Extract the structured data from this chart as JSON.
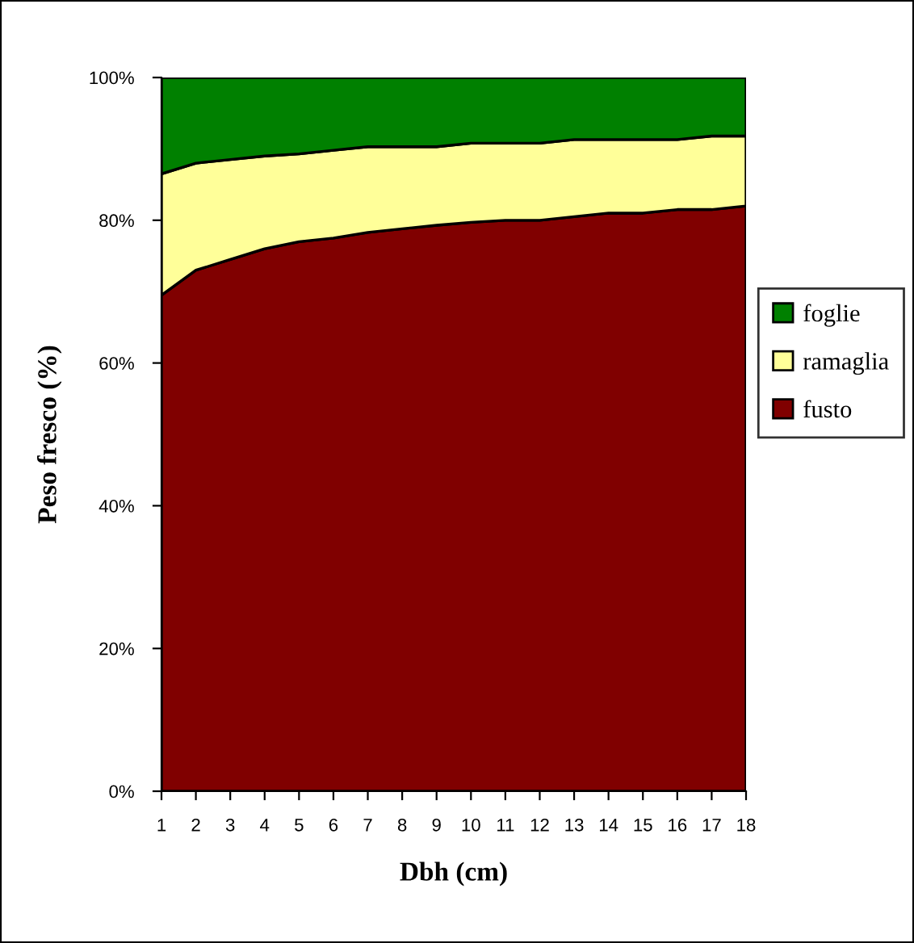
{
  "chart_data": {
    "type": "area",
    "stacked": true,
    "xlabel": "Dbh (cm)",
    "ylabel": "Peso fresco (%)",
    "categories": [
      "1",
      "2",
      "3",
      "4",
      "5",
      "6",
      "7",
      "8",
      "9",
      "10",
      "11",
      "12",
      "13",
      "14",
      "15",
      "16",
      "17",
      "18"
    ],
    "series": [
      {
        "name": "fusto",
        "color": "#800000",
        "values": [
          69.5,
          73,
          74.5,
          76,
          77,
          77.5,
          78.3,
          78.8,
          79.3,
          79.7,
          80,
          80,
          80.5,
          81,
          81,
          81.5,
          81.5,
          82
        ]
      },
      {
        "name": "ramaglia",
        "color": "#ffff99",
        "values": [
          17,
          15,
          14,
          13,
          12.3,
          12.3,
          12,
          11.5,
          11,
          11.1,
          10.8,
          10.8,
          10.8,
          10.3,
          10.3,
          9.8,
          10.3,
          9.8
        ]
      },
      {
        "name": "foglie",
        "color": "#008000",
        "values": [
          13.5,
          12,
          11.5,
          11,
          10.7,
          10.2,
          9.7,
          9.7,
          9.7,
          9.2,
          9.2,
          9.2,
          8.7,
          8.7,
          8.7,
          8.7,
          8.2,
          8.2
        ]
      }
    ],
    "ylim": [
      0,
      100
    ],
    "yticks": [
      {
        "value": 0,
        "label": "0%"
      },
      {
        "value": 20,
        "label": "20%"
      },
      {
        "value": 40,
        "label": "40%"
      },
      {
        "value": 60,
        "label": "60%"
      },
      {
        "value": 80,
        "label": "80%"
      },
      {
        "value": 100,
        "label": "100%"
      }
    ],
    "grid": false,
    "legend": "right"
  }
}
